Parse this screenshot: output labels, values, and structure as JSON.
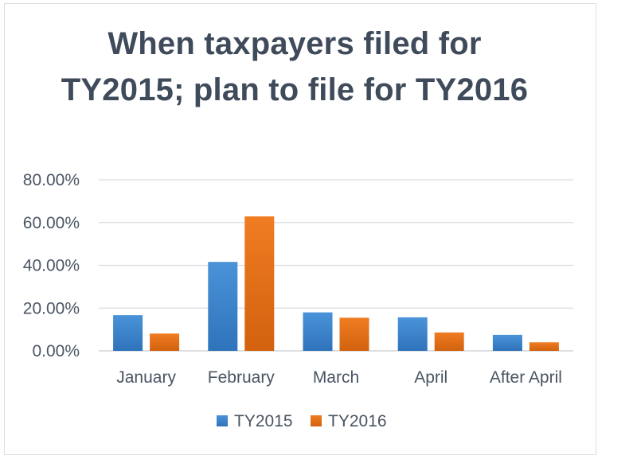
{
  "chart_data": {
    "type": "bar",
    "title": "When taxpayers filed for TY2015; plan to file for TY2016",
    "categories": [
      "January",
      "February",
      "March",
      "April",
      "After April"
    ],
    "series": [
      {
        "name": "TY2015",
        "values": [
          16.7,
          41.6,
          18.0,
          15.7,
          7.5
        ],
        "color": "#3f87cf"
      },
      {
        "name": "TY2016",
        "values": [
          8.1,
          62.9,
          15.5,
          8.6,
          4.0
        ],
        "color": "#e8731f"
      }
    ],
    "y_ticks": [
      "0.00%",
      "20.00%",
      "40.00%",
      "60.00%",
      "80.00%"
    ],
    "ylim": [
      0,
      80
    ],
    "grid": true,
    "legend_position": "bottom"
  }
}
